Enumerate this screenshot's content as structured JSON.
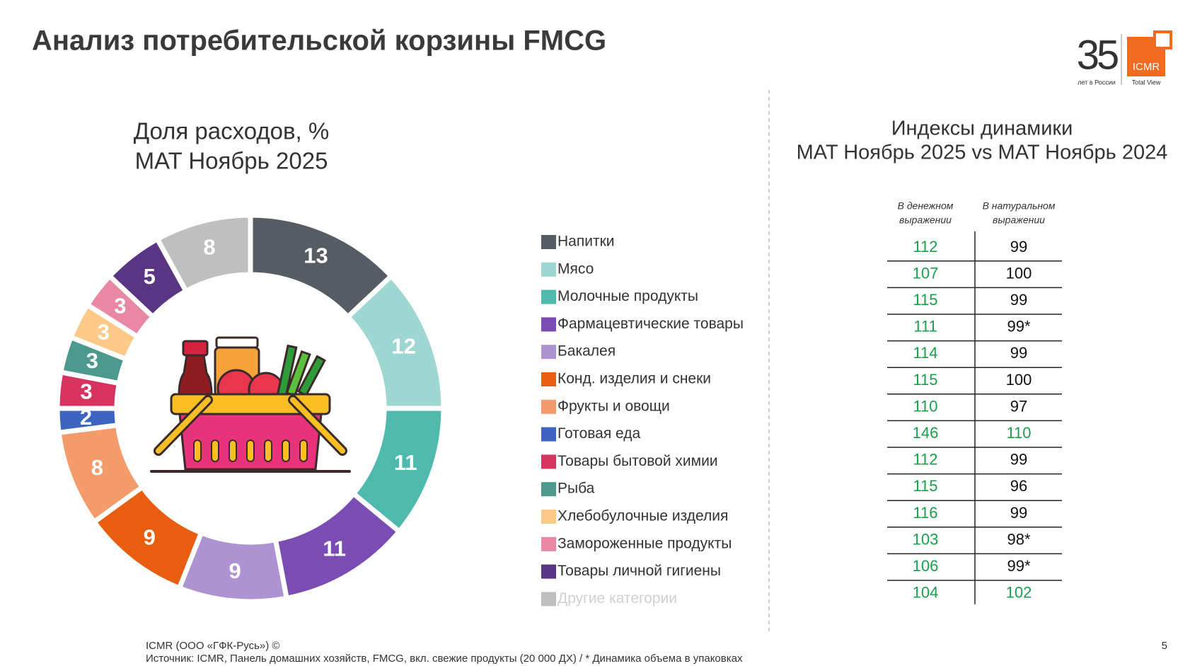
{
  "header": {
    "title": "Анализ потребительской корзины FMCG",
    "logo": {
      "number": "35",
      "caption": "лет в России",
      "brand": "ICMR",
      "tagline": "Total View"
    }
  },
  "chart_data": {
    "type": "pie",
    "donut": true,
    "title": [
      "Доля расходов, %",
      "MAT Ноябрь 2025"
    ],
    "categories": [
      "Напитки",
      "Мясо",
      "Молочные продукты",
      "Фармацевтические товары",
      "Бакалея",
      "Конд. изделия и снеки",
      "Фрукты и овощи",
      "Готовая еда",
      "Товары бытовой химии",
      "Рыба",
      "Хлебобулочные изделия",
      "Замороженные продукты",
      "Товары личной гигиены",
      "Другие категории"
    ],
    "values": [
      13,
      12,
      11,
      11,
      9,
      9,
      8,
      2,
      3,
      3,
      3,
      3,
      5,
      8
    ],
    "colors": [
      "#555c63",
      "#9ed7d2",
      "#4fb9ad",
      "#7b4db4",
      "#ae93d3",
      "#e85d10",
      "#f49b6c",
      "#3d64c0",
      "#d6335f",
      "#4c9a8e",
      "#fdc986",
      "#e888a4",
      "#5a3583",
      "#bfbfbf"
    ],
    "legend_label_colors": [
      "#333333",
      "#333333",
      "#333333",
      "#333333",
      "#333333",
      "#333333",
      "#333333",
      "#333333",
      "#333333",
      "#333333",
      "#333333",
      "#333333",
      "#333333",
      "#d0d0d0"
    ]
  },
  "table": {
    "title": [
      "Индексы динамики",
      "MAT Ноябрь 2025 vs MAT Ноябрь 2024"
    ],
    "columns": [
      {
        "header": [
          "В денежном",
          "выражении"
        ],
        "values": [
          112,
          107,
          115,
          111,
          114,
          115,
          110,
          146,
          112,
          115,
          116,
          103,
          106,
          104
        ],
        "colors": [
          "#18a04a",
          "#18a04a",
          "#18a04a",
          "#18a04a",
          "#18a04a",
          "#18a04a",
          "#18a04a",
          "#18a04a",
          "#18a04a",
          "#18a04a",
          "#18a04a",
          "#18a04a",
          "#18a04a",
          "#18a04a"
        ]
      },
      {
        "header": [
          "В натуральном",
          "выражении"
        ],
        "values": [
          "99",
          "100",
          "99",
          "99*",
          "99",
          "100",
          "97",
          "110",
          "99",
          "96",
          "99",
          "98*",
          "99*",
          "102"
        ],
        "colors": [
          "#111111",
          "#111111",
          "#111111",
          "#111111",
          "#111111",
          "#111111",
          "#111111",
          "#18a04a",
          "#111111",
          "#111111",
          "#111111",
          "#111111",
          "#111111",
          "#18a04a"
        ]
      }
    ]
  },
  "footer": {
    "copyright": "ICMR (ООО «ГФК-Русь») ©",
    "source": "Источник: ICMR, Панель домашних хозяйств, FMCG, вкл. свежие продукты (20 000 ДХ) /  * Динамика объема в упаковках",
    "page": "5"
  }
}
